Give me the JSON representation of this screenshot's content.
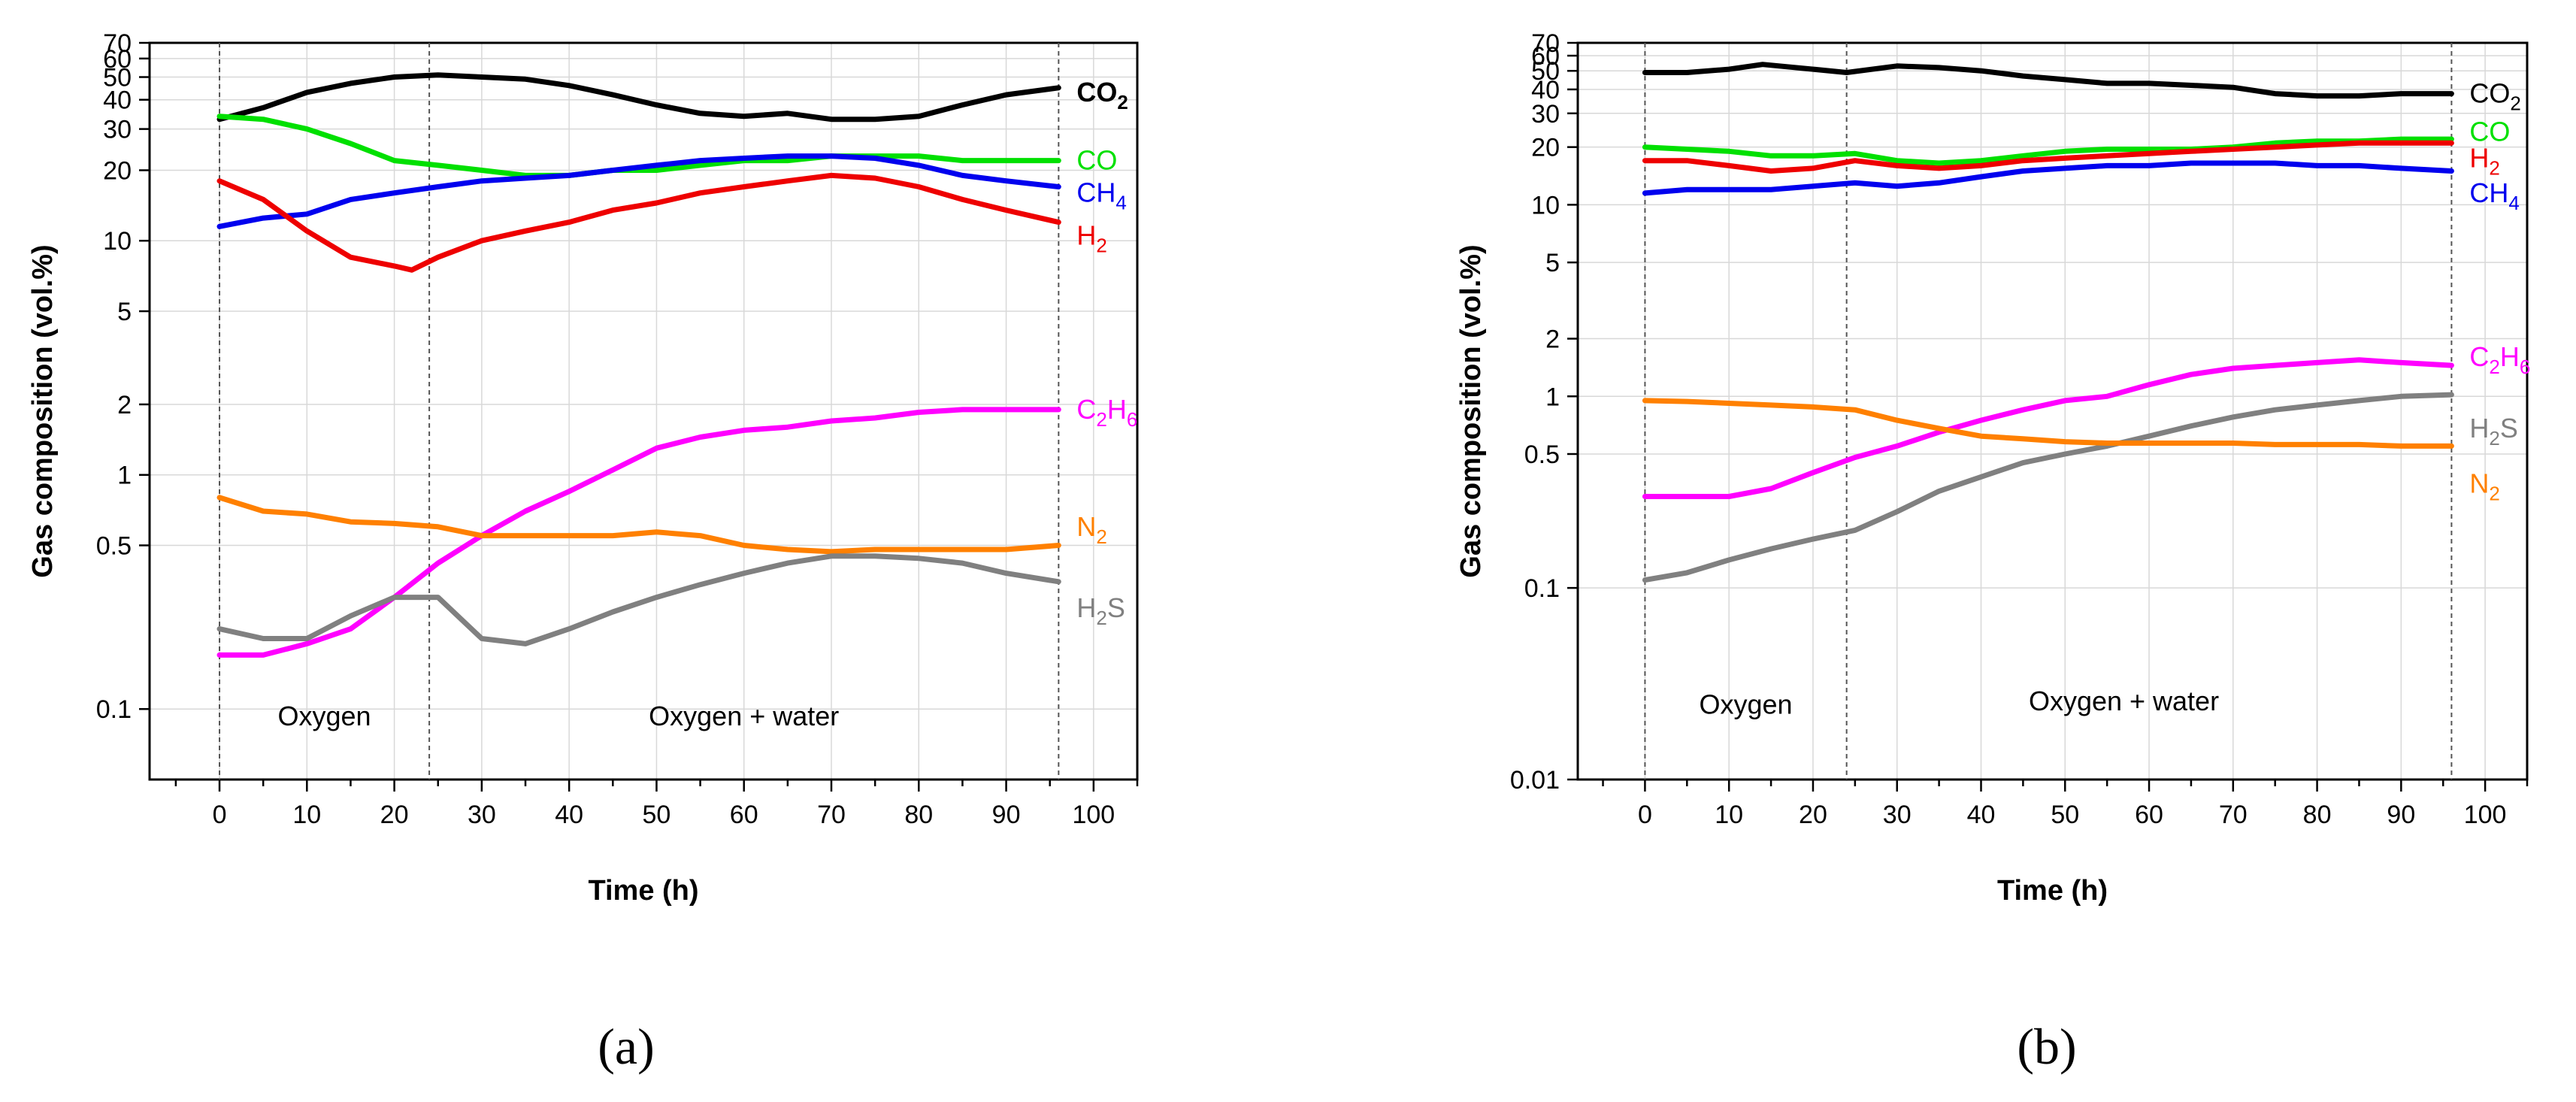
{
  "chart_data": [
    {
      "type": "line",
      "panel": "(a)",
      "xlabel": "Time (h)",
      "ylabel": "Gas composition (vol.%)",
      "xlim": [
        -8,
        105
      ],
      "ylim": [
        0.05,
        70
      ],
      "yscale": "log",
      "x_ticks": [
        0,
        10,
        20,
        30,
        40,
        50,
        60,
        70,
        80,
        90,
        100
      ],
      "y_ticks": [
        0.1,
        0.5,
        1,
        2,
        5,
        10,
        20,
        30,
        40,
        50,
        60,
        70
      ],
      "annotations": [
        {
          "text": "Oxygen",
          "x": 12,
          "y": 0.085
        },
        {
          "text": "Oxygen + water",
          "x": 60,
          "y": 0.085
        }
      ],
      "vlines": [
        0,
        24,
        96
      ],
      "series": [
        {
          "name": "CO",
          "sub": "2",
          "sup": "",
          "label_tail": "",
          "color": "#000000",
          "label_y": 43,
          "bold": true,
          "x": [
            0,
            5,
            10,
            15,
            20,
            25,
            30,
            35,
            40,
            45,
            50,
            55,
            60,
            65,
            70,
            75,
            80,
            85,
            90,
            96
          ],
          "y": [
            33,
            37,
            43,
            47,
            50,
            51,
            50,
            49,
            46,
            42,
            38,
            35,
            34,
            35,
            33,
            33,
            34,
            38,
            42,
            45
          ]
        },
        {
          "name": "CO",
          "sub": "",
          "sup": "",
          "label_tail": "",
          "color": "#00e000",
          "label_y": 22,
          "x": [
            0,
            5,
            10,
            15,
            20,
            25,
            30,
            35,
            40,
            45,
            50,
            55,
            60,
            65,
            70,
            75,
            80,
            85,
            90,
            96
          ],
          "y": [
            34,
            33,
            30,
            26,
            22,
            21,
            20,
            19,
            19,
            20,
            20,
            21,
            22,
            22,
            23,
            23,
            23,
            22,
            22,
            22
          ]
        },
        {
          "name": "CH",
          "sub": "4",
          "sup": "",
          "label_tail": "",
          "color": "#0000ee",
          "label_y": 16,
          "x": [
            0,
            5,
            10,
            15,
            20,
            25,
            30,
            35,
            40,
            45,
            50,
            55,
            60,
            65,
            70,
            75,
            80,
            85,
            90,
            96
          ],
          "y": [
            11.5,
            12.5,
            13,
            15,
            16,
            17,
            18,
            18.5,
            19,
            20,
            21,
            22,
            22.5,
            23,
            23,
            22.5,
            21,
            19,
            18,
            17
          ]
        },
        {
          "name": "H",
          "sub": "2",
          "sup": "",
          "label_tail": "",
          "color": "#ee0000",
          "label_y": 10.5,
          "x": [
            0,
            5,
            10,
            15,
            20,
            22,
            25,
            30,
            35,
            40,
            45,
            50,
            55,
            60,
            65,
            70,
            75,
            80,
            85,
            90,
            96
          ],
          "y": [
            18,
            15,
            11,
            8.5,
            7.8,
            7.5,
            8.5,
            10,
            11,
            12,
            13.5,
            14.5,
            16,
            17,
            18,
            19,
            18.5,
            17,
            15,
            13.5,
            12
          ]
        },
        {
          "name": "C",
          "sub": "2",
          "sup": "",
          "label_tail": "H6",
          "color": "#ff00ff",
          "label_y": 1.9,
          "x": [
            0,
            5,
            10,
            15,
            20,
            25,
            30,
            35,
            40,
            45,
            50,
            55,
            60,
            65,
            70,
            75,
            80,
            85,
            90,
            96
          ],
          "y": [
            0.17,
            0.17,
            0.19,
            0.22,
            0.3,
            0.42,
            0.55,
            0.7,
            0.85,
            1.05,
            1.3,
            1.45,
            1.55,
            1.6,
            1.7,
            1.75,
            1.85,
            1.9,
            1.9,
            1.9
          ]
        },
        {
          "name": "N",
          "sub": "2",
          "sup": "",
          "label_tail": "",
          "color": "#ff8000",
          "label_y": 0.6,
          "x": [
            0,
            5,
            10,
            15,
            20,
            25,
            30,
            35,
            40,
            45,
            50,
            55,
            60,
            65,
            70,
            75,
            80,
            85,
            90,
            96
          ],
          "y": [
            0.8,
            0.7,
            0.68,
            0.63,
            0.62,
            0.6,
            0.55,
            0.55,
            0.55,
            0.55,
            0.57,
            0.55,
            0.5,
            0.48,
            0.47,
            0.48,
            0.48,
            0.48,
            0.48,
            0.5
          ]
        },
        {
          "name": "H",
          "sub": "2",
          "sup": "",
          "label_tail": "S",
          "color": "#808080",
          "label_y": 0.27,
          "x": [
            0,
            5,
            10,
            15,
            20,
            25,
            30,
            35,
            40,
            45,
            50,
            55,
            60,
            65,
            70,
            75,
            80,
            85,
            90,
            96
          ],
          "y": [
            0.22,
            0.2,
            0.2,
            0.25,
            0.3,
            0.3,
            0.2,
            0.19,
            0.22,
            0.26,
            0.3,
            0.34,
            0.38,
            0.42,
            0.45,
            0.45,
            0.44,
            0.42,
            0.38,
            0.35
          ]
        }
      ]
    },
    {
      "type": "line",
      "panel": "(b)",
      "xlabel": "Time (h)",
      "ylabel": "Gas composition (vol.%)",
      "xlim": [
        -8,
        105
      ],
      "ylim": [
        0.01,
        70
      ],
      "yscale": "log",
      "x_ticks": [
        0,
        10,
        20,
        30,
        40,
        50,
        60,
        70,
        80,
        90,
        100
      ],
      "y_ticks": [
        0.01,
        0.1,
        0.5,
        1,
        2,
        5,
        10,
        20,
        30,
        40,
        50,
        60,
        70
      ],
      "annotations": [
        {
          "text": "Oxygen",
          "x": 12,
          "y": 0.022
        },
        {
          "text": "Oxygen + water",
          "x": 57,
          "y": 0.023
        }
      ],
      "vlines": [
        0,
        24,
        96
      ],
      "series": [
        {
          "name": "CO",
          "sub": "2",
          "sup": "",
          "label_tail": "",
          "color": "#000000",
          "label_y": 38,
          "x": [
            0,
            5,
            10,
            14,
            20,
            24,
            30,
            35,
            40,
            45,
            50,
            55,
            60,
            65,
            70,
            75,
            80,
            85,
            90,
            96
          ],
          "y": [
            49,
            49,
            51,
            54,
            51,
            49,
            53,
            52,
            50,
            47,
            45,
            43,
            43,
            42,
            41,
            38,
            37,
            37,
            38,
            38
          ]
        },
        {
          "name": "CO",
          "sub": "",
          "sup": "",
          "label_tail": "",
          "color": "#00e000",
          "label_y": 24,
          "x": [
            0,
            5,
            10,
            15,
            20,
            25,
            30,
            35,
            40,
            45,
            50,
            55,
            60,
            65,
            70,
            75,
            80,
            85,
            90,
            96
          ],
          "y": [
            20,
            19.5,
            19,
            18,
            18,
            18.5,
            17,
            16.5,
            17,
            18,
            19,
            19.5,
            19.5,
            19.5,
            20,
            21,
            21.5,
            21.5,
            22,
            22
          ]
        },
        {
          "name": "H",
          "sub": "2",
          "sup": "",
          "label_tail": "",
          "color": "#ee0000",
          "label_y": 17.5,
          "x": [
            0,
            5,
            10,
            15,
            20,
            25,
            30,
            35,
            40,
            45,
            50,
            55,
            60,
            65,
            70,
            75,
            80,
            85,
            90,
            96
          ],
          "y": [
            17,
            17,
            16,
            15,
            15.5,
            17,
            16,
            15.5,
            16,
            17,
            17.5,
            18,
            18.5,
            19,
            19.5,
            20,
            20.5,
            21,
            21,
            21
          ]
        },
        {
          "name": "CH",
          "sub": "4",
          "sup": "",
          "label_tail": "",
          "color": "#0000ee",
          "label_y": 11.5,
          "x": [
            0,
            5,
            10,
            15,
            20,
            25,
            30,
            35,
            40,
            45,
            50,
            55,
            60,
            65,
            70,
            75,
            80,
            85,
            90,
            96
          ],
          "y": [
            11.5,
            12,
            12,
            12,
            12.5,
            13,
            12.5,
            13,
            14,
            15,
            15.5,
            16,
            16,
            16.5,
            16.5,
            16.5,
            16,
            16,
            15.5,
            15
          ]
        },
        {
          "name": "C",
          "sub": "2",
          "sup": "",
          "label_tail": "H6",
          "color": "#ff00ff",
          "label_y": 1.6,
          "x": [
            0,
            5,
            10,
            15,
            20,
            25,
            30,
            35,
            40,
            45,
            50,
            55,
            60,
            65,
            70,
            75,
            80,
            85,
            90,
            96
          ],
          "y": [
            0.3,
            0.3,
            0.3,
            0.33,
            0.4,
            0.48,
            0.55,
            0.65,
            0.75,
            0.85,
            0.95,
            1.0,
            1.15,
            1.3,
            1.4,
            1.45,
            1.5,
            1.55,
            1.5,
            1.45
          ]
        },
        {
          "name": "H",
          "sub": "2",
          "sup": "",
          "label_tail": "S",
          "color": "#808080",
          "label_y": 0.68,
          "x": [
            0,
            5,
            10,
            15,
            20,
            25,
            30,
            35,
            40,
            45,
            50,
            55,
            60,
            65,
            70,
            75,
            80,
            85,
            90,
            96
          ],
          "y": [
            0.11,
            0.12,
            0.14,
            0.16,
            0.18,
            0.2,
            0.25,
            0.32,
            0.38,
            0.45,
            0.5,
            0.55,
            0.62,
            0.7,
            0.78,
            0.85,
            0.9,
            0.95,
            1.0,
            1.02
          ]
        },
        {
          "name": "N",
          "sub": "2",
          "sup": "",
          "label_tail": "",
          "color": "#ff8000",
          "label_y": 0.35,
          "x": [
            0,
            5,
            10,
            15,
            20,
            25,
            30,
            35,
            40,
            45,
            50,
            55,
            60,
            65,
            70,
            75,
            80,
            85,
            90,
            96
          ],
          "y": [
            0.95,
            0.94,
            0.92,
            0.9,
            0.88,
            0.85,
            0.75,
            0.68,
            0.62,
            0.6,
            0.58,
            0.57,
            0.57,
            0.57,
            0.57,
            0.56,
            0.56,
            0.56,
            0.55,
            0.55
          ]
        }
      ]
    }
  ]
}
